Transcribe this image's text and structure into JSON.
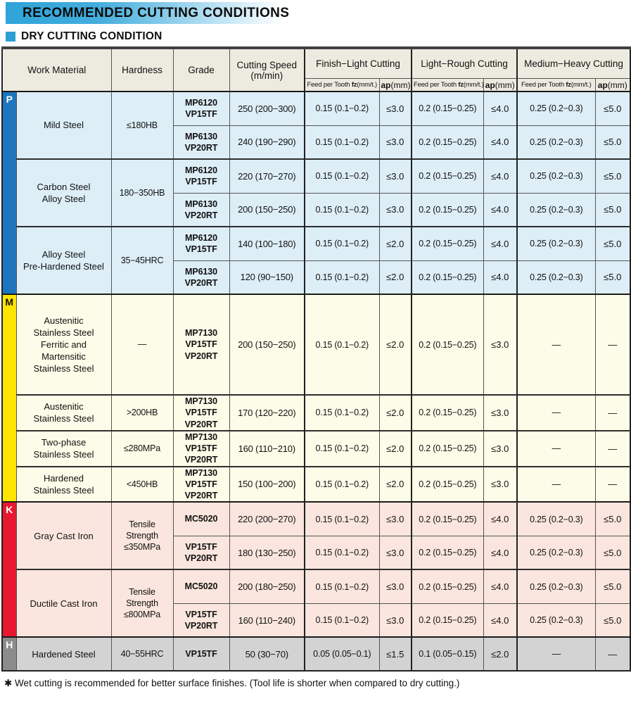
{
  "page": {
    "title": "RECOMMENDED CUTTING CONDITIONS",
    "subtitle": "DRY CUTTING CONDITION",
    "footnote": "✱ Wet cutting is recommended for better surface finishes. (Tool life is shorter when compared to dry cutting.)"
  },
  "colors": {
    "accent_blue": "#2aa0d4",
    "header_bg": "#edeadf",
    "p_bar": "#1d76bd",
    "p_bg": "#ddeef7",
    "m_bar": "#ffe400",
    "m_bg": "#fdfce8",
    "k_bar": "#e71930",
    "k_bg": "#fae6de",
    "h_bar": "#8c8c8c",
    "h_bg": "#d3d3d3"
  },
  "table": {
    "headers": {
      "work_material": "Work Material",
      "hardness": "Hardness",
      "grade": "Grade",
      "cutting_speed": [
        "Cutting Speed",
        "(m/min)"
      ],
      "groups": [
        "Finish−Light Cutting",
        "Light−Rough Cutting",
        "Medium−Heavy Cutting"
      ],
      "feed_label": {
        "prefix": "Feed per Tooth ",
        "bold": "fz",
        "suffix": "(mm/t.)"
      },
      "ap_label": {
        "bold": "ap",
        "suffix": "(mm)"
      }
    },
    "sections": [
      {
        "letter": "P",
        "bar_color": "#1d76bd",
        "letter_color": "#ffffff",
        "row_bg": "#ddeef7",
        "groups": [
          {
            "material": [
              "Mild Steel"
            ],
            "hardness": [
              "≤180HB"
            ],
            "rows": [
              {
                "grade": [
                  "MP6120",
                  "VP15TF"
                ],
                "speed": "250 (200−300)",
                "cells": [
                  "0.15 (0.1−0.2)",
                  "≤3.0",
                  "0.2 (0.15−0.25)",
                  "≤4.0",
                  "0.25 (0.2−0.3)",
                  "≤5.0"
                ]
              },
              {
                "grade": [
                  "MP6130",
                  "VP20RT"
                ],
                "speed": "240 (190−290)",
                "cells": [
                  "0.15 (0.1−0.2)",
                  "≤3.0",
                  "0.2 (0.15−0.25)",
                  "≤4.0",
                  "0.25 (0.2−0.3)",
                  "≤5.0"
                ]
              }
            ]
          },
          {
            "material": [
              "Carbon Steel",
              "Alloy Steel"
            ],
            "hardness": [
              "180−350HB"
            ],
            "rows": [
              {
                "grade": [
                  "MP6120",
                  "VP15TF"
                ],
                "speed": "220 (170−270)",
                "cells": [
                  "0.15 (0.1−0.2)",
                  "≤3.0",
                  "0.2 (0.15−0.25)",
                  "≤4.0",
                  "0.25 (0.2−0.3)",
                  "≤5.0"
                ]
              },
              {
                "grade": [
                  "MP6130",
                  "VP20RT"
                ],
                "speed": "200 (150−250)",
                "cells": [
                  "0.15 (0.1−0.2)",
                  "≤3.0",
                  "0.2 (0.15−0.25)",
                  "≤4.0",
                  "0.25 (0.2−0.3)",
                  "≤5.0"
                ]
              }
            ]
          },
          {
            "material": [
              "Alloy Steel",
              "Pre-Hardened Steel"
            ],
            "hardness": [
              "35−45HRC"
            ],
            "rows": [
              {
                "grade": [
                  "MP6120",
                  "VP15TF"
                ],
                "speed": "140 (100−180)",
                "cells": [
                  "0.15 (0.1−0.2)",
                  "≤2.0",
                  "0.2 (0.15−0.25)",
                  "≤4.0",
                  "0.25 (0.2−0.3)",
                  "≤5.0"
                ]
              },
              {
                "grade": [
                  "MP6130",
                  "VP20RT"
                ],
                "speed": "120 (90−150)",
                "cells": [
                  "0.15 (0.1−0.2)",
                  "≤2.0",
                  "0.2 (0.15−0.25)",
                  "≤4.0",
                  "0.25 (0.2−0.3)",
                  "≤5.0"
                ]
              }
            ]
          }
        ]
      },
      {
        "letter": "M",
        "bar_color": "#ffe400",
        "letter_color": "#111111",
        "row_bg": "#fdfce8",
        "groups": [
          {
            "tall": true,
            "material": [
              "Austenitic",
              "Stainless Steel",
              "Ferritic and",
              "Martensitic",
              "Stainless Steel"
            ],
            "hardness": [
              "—"
            ],
            "rows": [
              {
                "grade": [
                  "MP7130",
                  "VP15TF",
                  "VP20RT"
                ],
                "speed": "200 (150−250)",
                "cells": [
                  "0.15 (0.1−0.2)",
                  "≤2.0",
                  "0.2 (0.15−0.25)",
                  "≤3.0",
                  "—",
                  "—"
                ]
              }
            ]
          },
          {
            "material": [
              "Austenitic",
              "Stainless Steel"
            ],
            "hardness": [
              ">200HB"
            ],
            "rows": [
              {
                "grade": [
                  "MP7130",
                  "VP15TF",
                  "VP20RT"
                ],
                "speed": "170 (120−220)",
                "cells": [
                  "0.15 (0.1−0.2)",
                  "≤2.0",
                  "0.2 (0.15−0.25)",
                  "≤3.0",
                  "—",
                  "—"
                ]
              }
            ]
          },
          {
            "material": [
              "Two-phase",
              "Stainless Steel"
            ],
            "hardness": [
              "≤280MPa"
            ],
            "rows": [
              {
                "grade": [
                  "MP7130",
                  "VP15TF",
                  "VP20RT"
                ],
                "speed": "160 (110−210)",
                "cells": [
                  "0.15 (0.1−0.2)",
                  "≤2.0",
                  "0.2 (0.15−0.25)",
                  "≤3.0",
                  "—",
                  "—"
                ]
              }
            ]
          },
          {
            "material": [
              "Hardened",
              "Stainless Steel"
            ],
            "hardness": [
              "<450HB"
            ],
            "rows": [
              {
                "grade": [
                  "MP7130",
                  "VP15TF",
                  "VP20RT"
                ],
                "speed": "150 (100−200)",
                "cells": [
                  "0.15 (0.1−0.2)",
                  "≤2.0",
                  "0.2 (0.15−0.25)",
                  "≤3.0",
                  "—",
                  "—"
                ]
              }
            ]
          }
        ]
      },
      {
        "letter": "K",
        "bar_color": "#e71930",
        "letter_color": "#ffffff",
        "row_bg": "#fae6de",
        "groups": [
          {
            "material": [
              "Gray Cast Iron"
            ],
            "hardness": [
              "Tensile Strength",
              "≤350MPa"
            ],
            "rows": [
              {
                "grade": [
                  "MC5020"
                ],
                "speed": "220 (200−270)",
                "cells": [
                  "0.15 (0.1−0.2)",
                  "≤3.0",
                  "0.2 (0.15−0.25)",
                  "≤4.0",
                  "0.25 (0.2−0.3)",
                  "≤5.0"
                ]
              },
              {
                "grade": [
                  "VP15TF",
                  "VP20RT"
                ],
                "speed": "180 (130−250)",
                "cells": [
                  "0.15 (0.1−0.2)",
                  "≤3.0",
                  "0.2 (0.15−0.25)",
                  "≤4.0",
                  "0.25 (0.2−0.3)",
                  "≤5.0"
                ]
              }
            ]
          },
          {
            "material": [
              "Ductile Cast Iron"
            ],
            "hardness": [
              "Tensile Strength",
              "≤800MPa"
            ],
            "rows": [
              {
                "grade": [
                  "MC5020"
                ],
                "speed": "200 (180−250)",
                "cells": [
                  "0.15 (0.1−0.2)",
                  "≤3.0",
                  "0.2 (0.15−0.25)",
                  "≤4.0",
                  "0.25 (0.2−0.3)",
                  "≤5.0"
                ]
              },
              {
                "grade": [
                  "VP15TF",
                  "VP20RT"
                ],
                "speed": "160 (110−240)",
                "cells": [
                  "0.15 (0.1−0.2)",
                  "≤3.0",
                  "0.2 (0.15−0.25)",
                  "≤4.0",
                  "0.25 (0.2−0.3)",
                  "≤5.0"
                ]
              }
            ]
          }
        ]
      },
      {
        "letter": "H",
        "bar_color": "#8c8c8c",
        "letter_color": "#ffffff",
        "row_bg": "#d3d3d3",
        "groups": [
          {
            "material": [
              "Hardened Steel"
            ],
            "hardness": [
              "40−55HRC"
            ],
            "rows": [
              {
                "grade": [
                  "VP15TF"
                ],
                "speed": "50 (30−70)",
                "cells": [
                  "0.05 (0.05−0.1)",
                  "≤1.5",
                  "0.1 (0.05−0.15)",
                  "≤2.0",
                  "—",
                  "—"
                ]
              }
            ]
          }
        ]
      }
    ]
  }
}
